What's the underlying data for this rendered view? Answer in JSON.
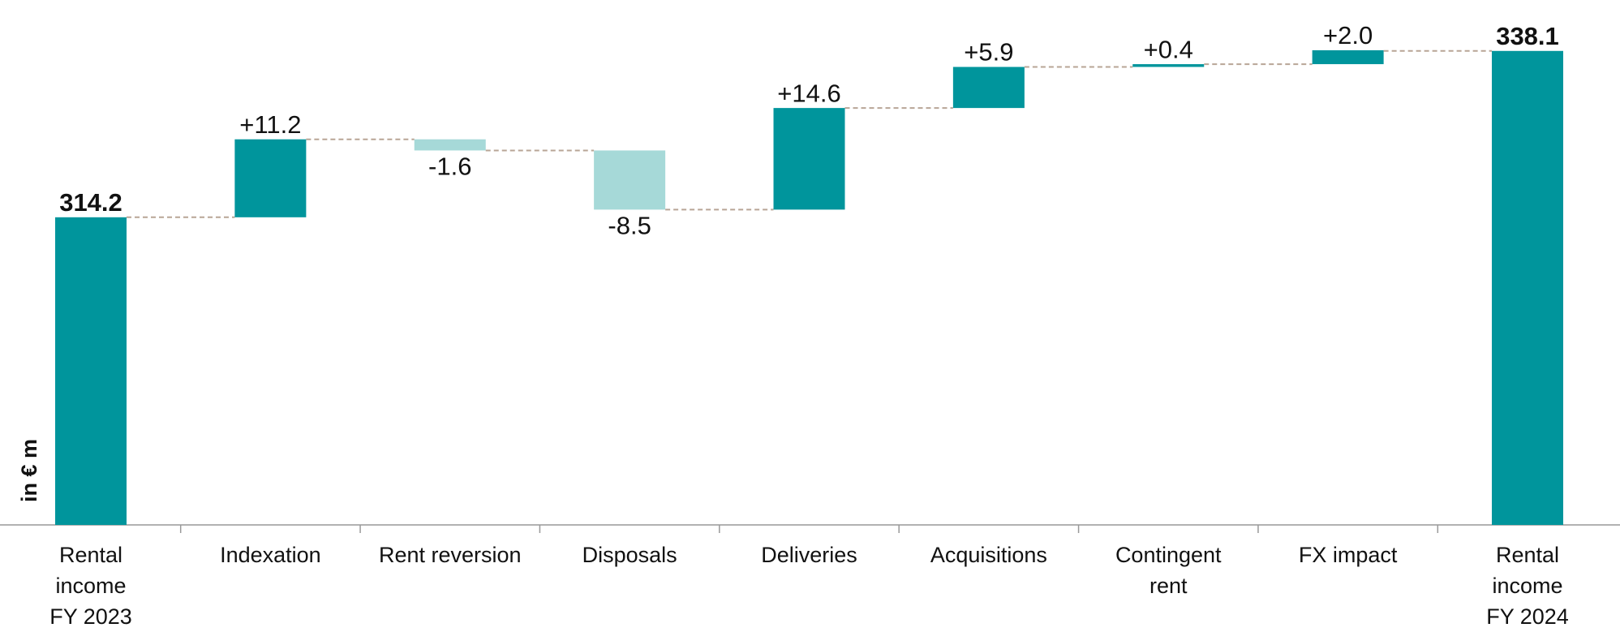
{
  "chart_data": {
    "type": "waterfall",
    "y_label": "in € m",
    "categories": [
      "Rental\nincome\nFY 2023",
      "Indexation",
      "Rent reversion",
      "Disposals",
      "Deliveries",
      "Acquisitions",
      "Contingent\nrent",
      "FX impact",
      "Rental\nincome\nFY 2024"
    ],
    "measure": [
      "total",
      "relative",
      "relative",
      "relative",
      "relative",
      "relative",
      "relative",
      "relative",
      "total"
    ],
    "values": [
      314.2,
      11.2,
      -1.6,
      -8.5,
      14.6,
      5.9,
      0.4,
      2.0,
      338.1
    ],
    "value_labels": [
      "314.2",
      "+11.2",
      "-1.6",
      "-8.5",
      "+14.6",
      "+5.9",
      "+0.4",
      "+2.0",
      "338.1"
    ],
    "colors": {
      "total": "#00959c",
      "increase": "#00959c",
      "decrease": "#a6d9d8",
      "connector": "#b8a596"
    },
    "ylim": [
      270,
      346
    ]
  }
}
